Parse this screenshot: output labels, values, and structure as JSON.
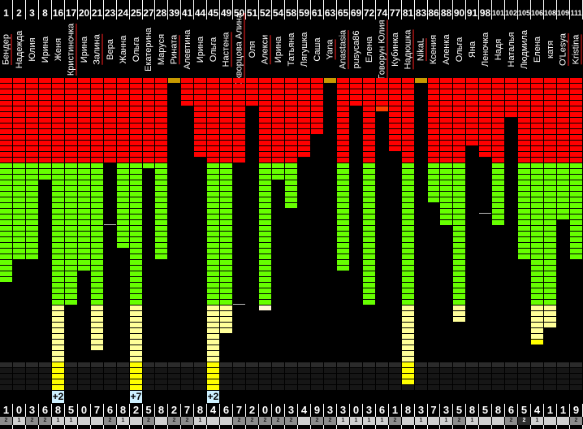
{
  "colors": {
    "R": "#ff0000",
    "G": "#66ff00",
    "L": "#ffff99",
    "Y": "#ffff00",
    "O": "#c89a00",
    "A": "#ff4000",
    "W": "#fff6d8",
    "dark_top": "#2b2b2b",
    "dark": "#161616",
    "badge_1": "#cfcfcf",
    "badge_2": "#8c8c8c",
    "badge_dark": "#2e2e2e"
  },
  "columns": [
    {
      "num": "1",
      "name": "Бендер",
      "flag": true,
      "seg": [
        [
          "R",
          15
        ],
        [
          "G",
          21
        ]
      ],
      "digit": "1",
      "badge": "2"
    },
    {
      "num": "2",
      "name": "Надежда",
      "flag": false,
      "seg": [
        [
          "R",
          15
        ],
        [
          "G",
          17
        ]
      ],
      "digit": "0",
      "badge": "1"
    },
    {
      "num": "3",
      "name": "Юлия",
      "flag": false,
      "seg": [
        [
          "R",
          15
        ],
        [
          "G",
          17
        ]
      ],
      "digit": "3",
      "badge": "2"
    },
    {
      "num": "8",
      "name": "Ирина",
      "flag": false,
      "seg": [
        [
          "R",
          15
        ],
        [
          "G",
          3
        ]
      ],
      "digit": "6",
      "badge": "2"
    },
    {
      "num": "16",
      "name": "Женя",
      "flag": false,
      "seg": [
        [
          "R",
          15
        ],
        [
          "G",
          25
        ],
        [
          "L",
          10
        ],
        [
          "Y",
          5
        ]
      ],
      "bonus": "+2",
      "digit": "8",
      "badge": "1"
    },
    {
      "num": "17",
      "name": "Кристиночка",
      "flag": true,
      "seg": [
        [
          "R",
          15
        ],
        [
          "G",
          25
        ]
      ],
      "digit": "5",
      "badge": "1"
    },
    {
      "num": "20",
      "name": "Ирина",
      "flag": false,
      "seg": [
        [
          "R",
          15
        ],
        [
          "G",
          19
        ]
      ],
      "digit": "0",
      "badge": ""
    },
    {
      "num": "21",
      "name": "Залина",
      "flag": true,
      "seg": [
        [
          "R",
          15
        ],
        [
          "G",
          25
        ],
        [
          "L",
          8
        ]
      ],
      "digit": "7",
      "badge": ""
    },
    {
      "num": "23",
      "name": "Вера",
      "flag": false,
      "seg": [
        [
          "R",
          15
        ]
      ],
      "tick": 26,
      "digit": "6",
      "badge": "2"
    },
    {
      "num": "24",
      "name": "Жанна",
      "flag": false,
      "seg": [
        [
          "R",
          15
        ],
        [
          "G",
          15
        ]
      ],
      "digit": "8",
      "badge": "1"
    },
    {
      "num": "25",
      "name": "Ольга",
      "flag": false,
      "seg": [
        [
          "R",
          15
        ],
        [
          "G",
          25
        ],
        [
          "L",
          10
        ],
        [
          "Y",
          5
        ]
      ],
      "bonus": "+7",
      "digit": "2",
      "badge": ""
    },
    {
      "num": "27",
      "name": "Екатерина",
      "flag": false,
      "seg": [
        [
          "R",
          15
        ],
        [
          "G",
          1
        ]
      ],
      "digit": "5",
      "badge": "2"
    },
    {
      "num": "28",
      "name": "Маруся",
      "flag": false,
      "seg": [
        [
          "R",
          15
        ],
        [
          "G",
          17
        ]
      ],
      "digit": "8",
      "badge": ""
    },
    {
      "num": "39",
      "name": "Рината",
      "flag": true,
      "seg": [
        [
          "O",
          1
        ]
      ],
      "digit": "2",
      "badge": "2"
    },
    {
      "num": "41",
      "name": "Алевтина",
      "flag": false,
      "seg": [
        [
          "R",
          5
        ]
      ],
      "digit": "7",
      "badge": "2"
    },
    {
      "num": "44",
      "name": "Ирина",
      "flag": false,
      "seg": [
        [
          "R",
          14
        ]
      ],
      "digit": "8",
      "badge": "1"
    },
    {
      "num": "45",
      "name": "Ольга",
      "flag": false,
      "seg": [
        [
          "R",
          15
        ],
        [
          "G",
          25
        ],
        [
          "L",
          10
        ],
        [
          "Y",
          5
        ]
      ],
      "bonus": "+2",
      "digit": "4",
      "badge": ""
    },
    {
      "num": "49",
      "name": "Настена",
      "flag": true,
      "seg": [
        [
          "R",
          15
        ],
        [
          "G",
          25
        ],
        [
          "L",
          5
        ]
      ],
      "digit": "6",
      "badge": ""
    },
    {
      "num": "50",
      "name": "Скворцова Алина",
      "flag": true,
      "seg": [
        [
          "R",
          15
        ]
      ],
      "tick": 40,
      "digit": "7",
      "badge": "2"
    },
    {
      "num": "51",
      "name": "Оля",
      "flag": false,
      "seg": [
        [
          "R",
          5
        ]
      ],
      "digit": "2",
      "badge": "2"
    },
    {
      "num": "52",
      "name": "Алекси",
      "flag": true,
      "seg": [
        [
          "R",
          15
        ],
        [
          "G",
          25
        ],
        [
          "W",
          1
        ]
      ],
      "digit": "0",
      "badge": "2"
    },
    {
      "num": "54",
      "name": "Ирина",
      "flag": false,
      "seg": [
        [
          "R",
          15
        ],
        [
          "G",
          3
        ]
      ],
      "digit": "0",
      "badge": "2"
    },
    {
      "num": "58",
      "name": "Татьяна",
      "flag": false,
      "seg": [
        [
          "R",
          15
        ],
        [
          "G",
          8
        ]
      ],
      "digit": "3",
      "badge": "2"
    },
    {
      "num": "59",
      "name": "Лягушка",
      "flag": false,
      "seg": [
        [
          "R",
          14
        ]
      ],
      "digit": "4",
      "badge": ""
    },
    {
      "num": "61",
      "name": "Саша",
      "flag": false,
      "seg": [
        [
          "R",
          10
        ]
      ],
      "digit": "9",
      "badge": "2"
    },
    {
      "num": "63",
      "name": "Yana",
      "flag": true,
      "seg": [
        [
          "O",
          1
        ]
      ],
      "digit": "3",
      "badge": "2"
    },
    {
      "num": "65",
      "name": "Anastasia",
      "flag": true,
      "seg": [
        [
          "R",
          15
        ],
        [
          "G",
          19
        ]
      ],
      "digit": "3",
      "badge": "1"
    },
    {
      "num": "69",
      "name": "pusyca86",
      "flag": false,
      "seg": [
        [
          "R",
          5
        ]
      ],
      "digit": "0",
      "badge": "1"
    },
    {
      "num": "72",
      "name": "Елена",
      "flag": false,
      "seg": [
        [
          "R",
          15
        ],
        [
          "G",
          25
        ]
      ],
      "digit": "3",
      "badge": "1"
    },
    {
      "num": "74",
      "name": "Говорун Юлия",
      "flag": true,
      "seg": [
        [
          "R",
          5
        ],
        [
          "A",
          1
        ]
      ],
      "digit": "6",
      "badge": "1"
    },
    {
      "num": "77",
      "name": "Кубинка",
      "flag": false,
      "seg": [
        [
          "R",
          13
        ]
      ],
      "digit": "1",
      "badge": "2"
    },
    {
      "num": "81",
      "name": "Надюшка",
      "flag": true,
      "seg": [
        [
          "R",
          15
        ],
        [
          "G",
          25
        ],
        [
          "L",
          10
        ],
        [
          "Y",
          4
        ]
      ],
      "digit": "8",
      "badge": ""
    },
    {
      "num": "83",
      "name": "NikaL",
      "flag": true,
      "seg": [
        [
          "O",
          1
        ]
      ],
      "digit": "3",
      "badge": "1"
    },
    {
      "num": "86",
      "name": "Ксения",
      "flag": false,
      "seg": [
        [
          "R",
          15
        ],
        [
          "G",
          7
        ]
      ],
      "digit": "7",
      "badge": ""
    },
    {
      "num": "88",
      "name": "Аленка",
      "flag": false,
      "seg": [
        [
          "R",
          15
        ],
        [
          "G",
          11
        ]
      ],
      "digit": "3",
      "badge": "1"
    },
    {
      "num": "90",
      "name": "Ольга",
      "flag": false,
      "seg": [
        [
          "R",
          15
        ],
        [
          "G",
          25
        ],
        [
          "L",
          3
        ]
      ],
      "digit": "5",
      "badge": "2"
    },
    {
      "num": "91",
      "name": "Яна",
      "flag": false,
      "seg": [
        [
          "R",
          12
        ]
      ],
      "digit": "8",
      "badge": "1"
    },
    {
      "num": "98",
      "name": "Леночка",
      "flag": false,
      "seg": [
        [
          "R",
          14
        ]
      ],
      "tick": 24,
      "digit": "5",
      "badge": ""
    },
    {
      "num": "101",
      "name": "Надя",
      "flag": false,
      "seg": [
        [
          "R",
          15
        ],
        [
          "G",
          11
        ]
      ],
      "digit": "8",
      "badge": ""
    },
    {
      "num": "102",
      "name": "Наталья",
      "flag": false,
      "seg": [
        [
          "R",
          7
        ]
      ],
      "digit": "6",
      "badge": "2"
    },
    {
      "num": "105",
      "name": "Людмила",
      "flag": false,
      "seg": [
        [
          "R",
          15
        ],
        [
          "G",
          17
        ]
      ],
      "digit": "5",
      "badge": "2",
      "badge_dark": true
    },
    {
      "num": "106",
      "name": "Елена",
      "flag": false,
      "seg": [
        [
          "R",
          15
        ],
        [
          "G",
          25
        ],
        [
          "L",
          6
        ],
        [
          "Y",
          1
        ]
      ],
      "digit": "4",
      "badge": "1"
    },
    {
      "num": "108",
      "name": "катя",
      "flag": false,
      "seg": [
        [
          "R",
          15
        ],
        [
          "G",
          25
        ],
        [
          "L",
          4
        ]
      ],
      "digit": "1",
      "badge": ""
    },
    {
      "num": "109",
      "name": "O'Lesya",
      "flag": true,
      "seg": [
        [
          "R",
          15
        ],
        [
          "G",
          10
        ]
      ],
      "digit": "1",
      "badge": ""
    },
    {
      "num": "111",
      "name": "Kristina",
      "flag": true,
      "seg": [
        [
          "R",
          15
        ],
        [
          "G",
          17
        ]
      ],
      "digit": "9",
      "badge": "2"
    }
  ]
}
